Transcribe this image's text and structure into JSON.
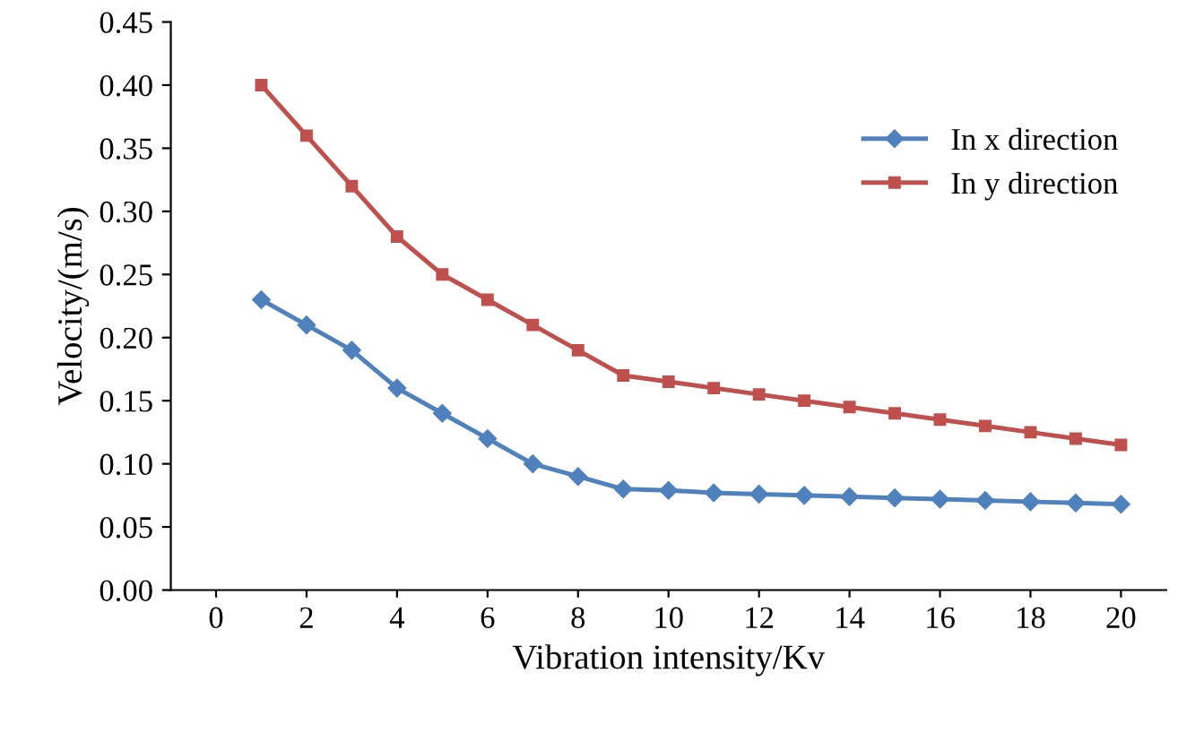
{
  "chart_data": {
    "type": "line",
    "xlabel": "Vibration intensity/Kv",
    "ylabel": "Velocity/(m/s)",
    "x": [
      1,
      2,
      3,
      4,
      5,
      6,
      7,
      8,
      9,
      10,
      11,
      12,
      13,
      14,
      15,
      16,
      17,
      18,
      19,
      20
    ],
    "series": [
      {
        "name": "In x direction",
        "color": "#4f81bd",
        "marker": "diamond",
        "values": [
          0.23,
          0.21,
          0.19,
          0.16,
          0.14,
          0.12,
          0.1,
          0.09,
          0.08,
          0.079,
          0.077,
          0.076,
          0.075,
          0.074,
          0.073,
          0.072,
          0.071,
          0.07,
          0.069,
          0.068
        ]
      },
      {
        "name": "In y direction",
        "color": "#c0504d",
        "marker": "square",
        "values": [
          0.4,
          0.36,
          0.32,
          0.28,
          0.25,
          0.23,
          0.21,
          0.19,
          0.17,
          0.165,
          0.16,
          0.155,
          0.15,
          0.145,
          0.14,
          0.135,
          0.13,
          0.125,
          0.12,
          0.115
        ]
      }
    ],
    "xlim": [
      -1,
      21
    ],
    "xticks": [
      0,
      2,
      4,
      6,
      8,
      10,
      12,
      14,
      16,
      18,
      20
    ],
    "ylim": [
      0,
      0.45
    ],
    "yticks": [
      {
        "value": 0,
        "label": "0.00"
      },
      {
        "value": 0.05,
        "label": "0.05"
      },
      {
        "value": 0.1,
        "label": "0.10"
      },
      {
        "value": 0.15,
        "label": "0.15"
      },
      {
        "value": 0.2,
        "label": "0.20"
      },
      {
        "value": 0.25,
        "label": "0.25"
      },
      {
        "value": 0.3,
        "label": "0.30"
      },
      {
        "value": 0.35,
        "label": "0.35"
      },
      {
        "value": 0.4,
        "label": "0.40"
      },
      {
        "value": 0.45,
        "label": "0.45"
      }
    ],
    "grid": false,
    "legend": "right",
    "line_style": "solid"
  }
}
